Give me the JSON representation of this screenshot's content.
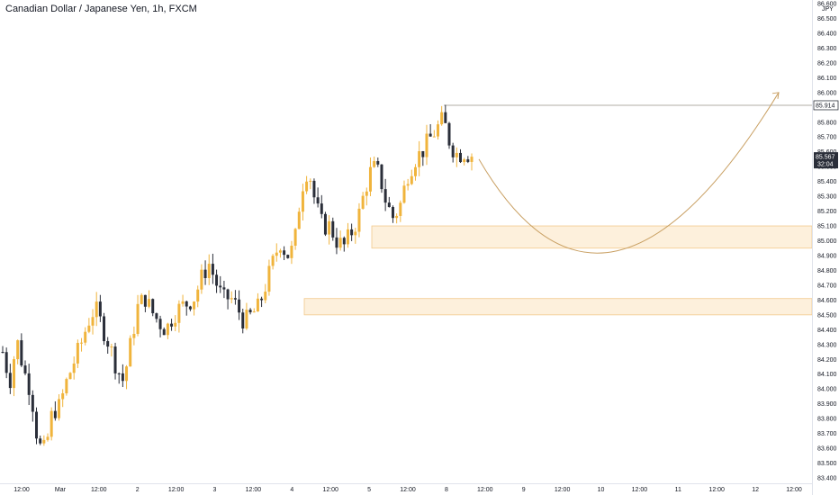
{
  "header": {
    "title": "Canadian Dollar / Japanese Yen, 1h, FXCM"
  },
  "price_axis": {
    "currency_label": "JPY",
    "last_price_label": "85.567",
    "countdown_label": "32:04",
    "high_label": "85.914"
  },
  "colors": {
    "up_candle": "#f0b43c",
    "down_candle": "#2a2e39",
    "zone_fill": "#fdf0dc",
    "zone_border": "#f2c98b",
    "arrow": "#c9a063",
    "high_line": "#b0aca6",
    "axis_text": "#131722"
  },
  "chart_data": {
    "type": "candlestick",
    "title": "Canadian Dollar / Japanese Yen, 1h, FXCM",
    "xlabel": "",
    "ylabel": "",
    "ylim": [
      83.4,
      86.6
    ],
    "y_ticks": [
      "86.600",
      "86.500",
      "86.400",
      "86.300",
      "86.200",
      "86.100",
      "86.000",
      "85.900",
      "85.800",
      "85.700",
      "85.600",
      "85.500",
      "85.400",
      "85.300",
      "85.200",
      "85.100",
      "85.000",
      "84.900",
      "84.800",
      "84.700",
      "84.600",
      "84.500",
      "84.400",
      "84.300",
      "84.200",
      "84.100",
      "84.000",
      "83.900",
      "83.800",
      "83.700",
      "83.600",
      "83.500",
      "83.400"
    ],
    "x_ticks": [
      "12:00",
      "Mar",
      "12:00",
      "2",
      "12:00",
      "3",
      "12:00",
      "4",
      "12:00",
      "5",
      "12:00",
      "8",
      "12:00",
      "9",
      "12:00",
      "10",
      "12:00",
      "11",
      "12:00",
      "12",
      "12:00"
    ],
    "close_path": [
      84.25,
      84.05,
      84.33,
      84.12,
      83.98,
      83.62,
      83.58,
      83.85,
      83.88,
      84.05,
      84.18,
      84.3,
      84.45,
      84.55,
      84.42,
      84.3,
      84.15,
      84.05,
      84.3,
      84.55,
      84.62,
      84.52,
      84.45,
      84.4,
      84.5,
      84.55,
      84.58,
      84.62,
      84.75,
      84.85,
      84.72,
      84.6,
      84.62,
      84.55,
      84.45,
      84.5,
      84.55,
      84.7,
      84.85,
      85.0,
      84.9,
      84.95,
      85.35,
      85.5,
      85.25,
      85.1,
      85.1,
      85.0,
      84.96,
      85.05,
      85.15,
      85.35,
      85.5,
      85.45,
      85.25,
      85.15,
      85.25,
      85.45,
      85.55,
      85.6,
      85.68,
      85.75,
      85.82,
      85.65,
      85.58,
      85.6,
      85.57
    ],
    "zones": [
      {
        "from": 84.95,
        "to": 85.1
      },
      {
        "from": 84.5,
        "to": 84.61
      }
    ],
    "high_level": 85.914,
    "last_price": 85.567,
    "projection": {
      "start": 85.55,
      "trough": 84.95,
      "end": 86.0
    }
  }
}
